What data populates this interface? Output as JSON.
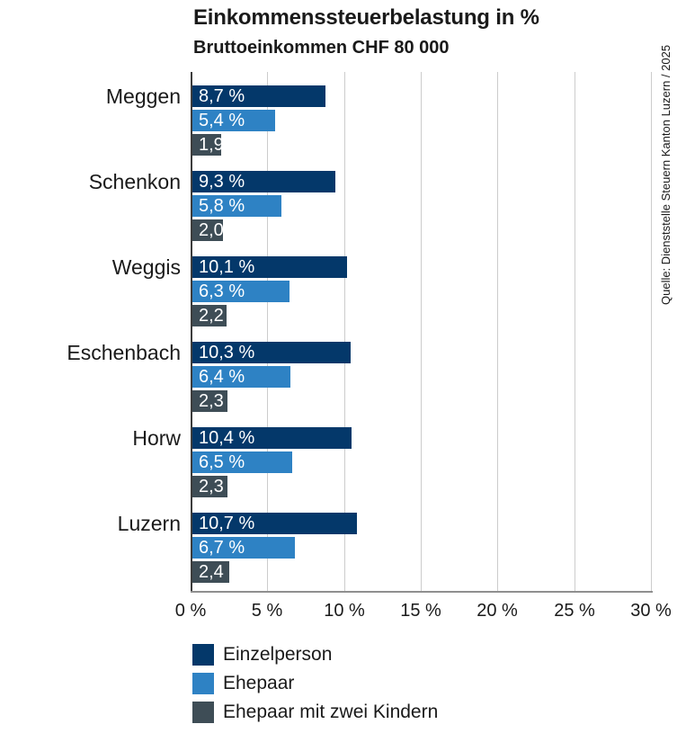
{
  "header": {
    "title": "Einkommenssteuerbelastung in %",
    "subtitle": "Bruttoeinkommen CHF 80 000"
  },
  "source": "Quelle: Dienststelle Steuern Kanton Luzern / 2025",
  "colors": {
    "series_dark_blue": "#04386a",
    "series_light_blue": "#2e82c4",
    "series_gray": "#3e4d56",
    "gridline": "#cccccc",
    "axis": "#3c3c3c",
    "text": "#1a1a1a",
    "bar_label": "#ffffff"
  },
  "chart_data": {
    "type": "bar",
    "orientation": "horizontal",
    "title": "Einkommenssteuerbelastung in %",
    "subtitle": "Bruttoeinkommen CHF 80 000",
    "categories": [
      "Meggen",
      "Schenkon",
      "Weggis",
      "Eschenbach",
      "Horw",
      "Luzern"
    ],
    "series": [
      {
        "name": "Einzelperson",
        "color": "#04386a",
        "values": [
          8.7,
          9.3,
          10.1,
          10.3,
          10.4,
          10.7
        ],
        "labels": [
          "8,7 %",
          "9,3 %",
          "10,1 %",
          "10,3 %",
          "10,4 %",
          "10,7 %"
        ]
      },
      {
        "name": "Ehepaar",
        "color": "#2e82c4",
        "values": [
          5.4,
          5.8,
          6.3,
          6.4,
          6.5,
          6.7
        ],
        "labels": [
          "5,4 %",
          "5,8 %",
          "6,3 %",
          "6,4 %",
          "6,5 %",
          "6,7 %"
        ]
      },
      {
        "name": "Ehepaar mit zwei Kindern",
        "color": "#3e4d56",
        "values": [
          1.9,
          2.0,
          2.2,
          2.3,
          2.3,
          2.4
        ],
        "labels": [
          "1,9",
          "2,0",
          "2,2",
          "2,3",
          "2,3",
          "2,4"
        ]
      }
    ],
    "xlim": [
      0,
      30
    ],
    "xticks": [
      0,
      5,
      10,
      15,
      20,
      25,
      30
    ],
    "xtick_labels": [
      "0 %",
      "5 %",
      "10 %",
      "15 %",
      "20 %",
      "25 %",
      "30 %"
    ],
    "grid": true,
    "legend_position": "bottom-left"
  }
}
